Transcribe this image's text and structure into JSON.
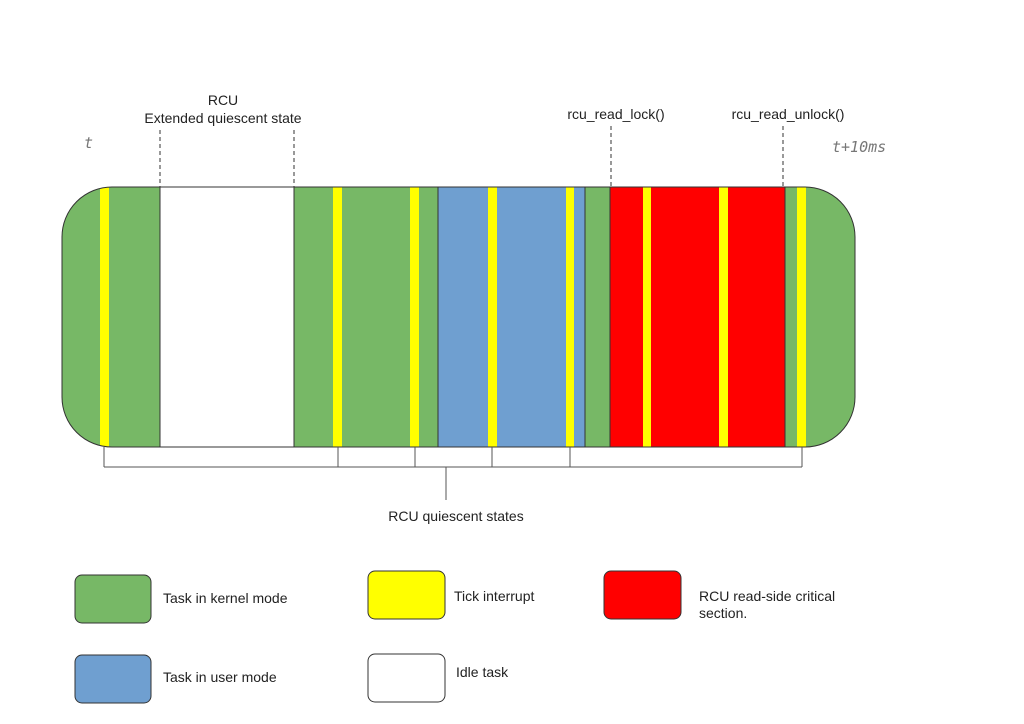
{
  "time_labels": {
    "start": "t",
    "end": "t+10ms"
  },
  "annotations": {
    "extended_quiescent_state": [
      "RCU",
      "Extended quiescent state"
    ],
    "read_lock": "rcu_read_lock()",
    "read_unlock": "rcu_read_unlock()",
    "quiescent_states": "RCU quiescent states"
  },
  "legend": {
    "kernel": "Task in kernel mode",
    "tick": "Tick interrupt",
    "critical": [
      "RCU read-side critical",
      "section."
    ],
    "user": "Task in user mode",
    "idle": "Idle task"
  }
}
